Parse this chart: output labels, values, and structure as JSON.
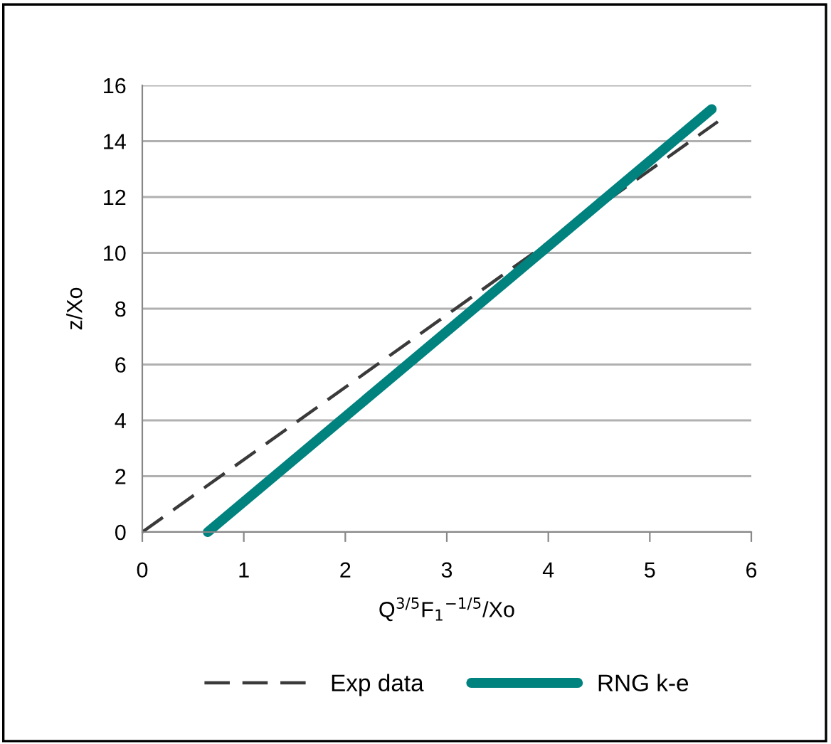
{
  "chart_data": {
    "type": "line",
    "xlabel": "Q$^{3/5}$F$_{1}$$^{−1/5}$/Xo",
    "ylabel": "z/Xo",
    "xlim": [
      0,
      6
    ],
    "xticks": [
      0,
      1,
      2,
      3,
      4,
      5,
      6
    ],
    "ylim": [
      0,
      16
    ],
    "yticks": [
      0,
      2,
      4,
      6,
      8,
      10,
      12,
      14,
      16
    ],
    "grid": "y",
    "legend": "bottom",
    "marker": "none",
    "series": [
      {
        "name": "Exp data",
        "color": "#3a3a3a",
        "line_style": "dashed",
        "x": [
          0,
          5.67
        ],
        "values": [
          0,
          14.7
        ]
      },
      {
        "name": "RNG k-e",
        "color": "#00827f",
        "line_style": "solid",
        "x": [
          0.645,
          5.61
        ],
        "values": [
          0,
          15.15
        ]
      }
    ]
  }
}
